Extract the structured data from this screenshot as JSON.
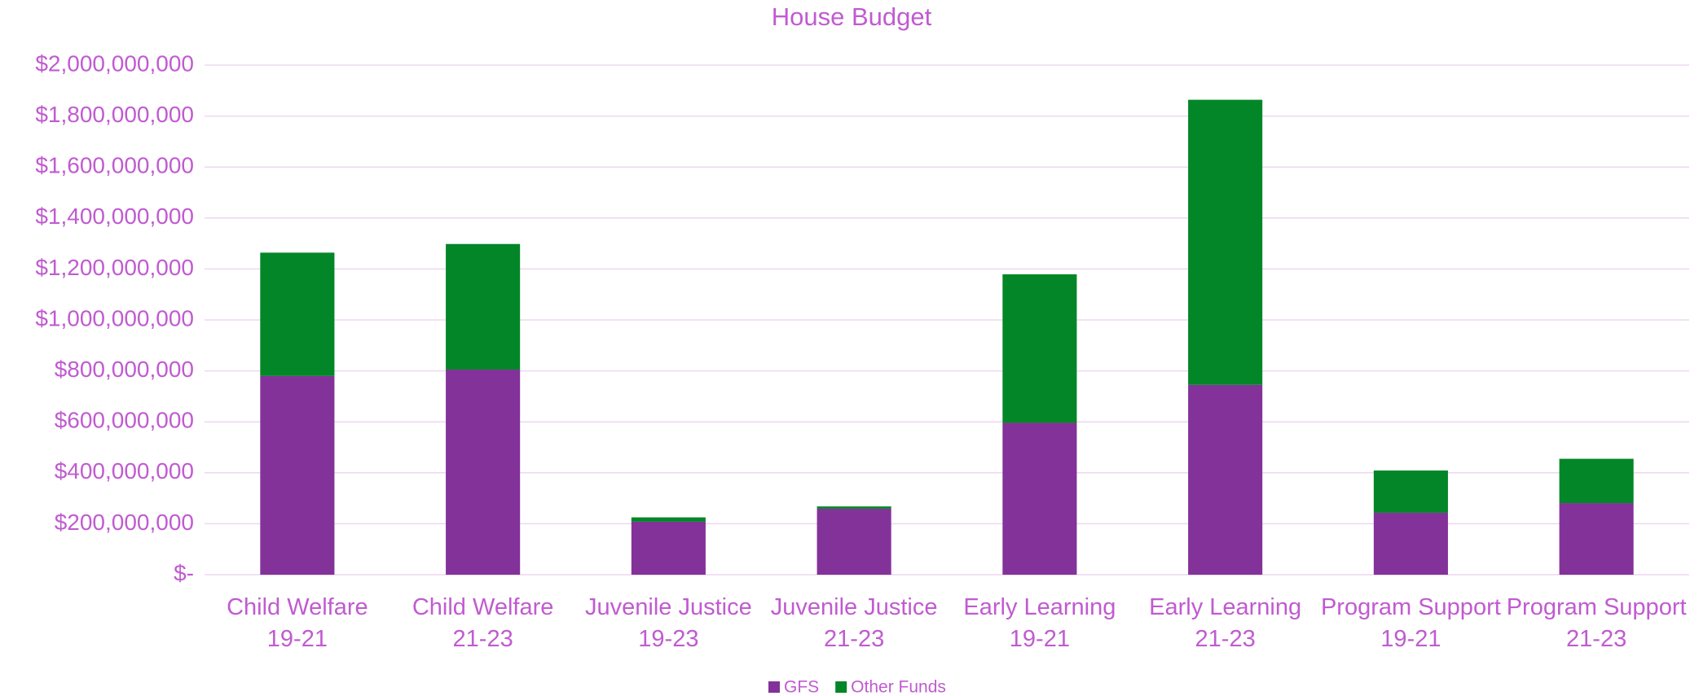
{
  "chart_data": {
    "type": "stacked_bar",
    "title": "House Budget",
    "categories": [
      "Child Welfare 19-21",
      "Child Welfare 21-23",
      "Juvenile Justice 19-23",
      "Juvenile Justice 21-23",
      "Early Learning 19-21",
      "Early Learning 21-23",
      "Program Support 19-21",
      "Program Support 21-23"
    ],
    "series": [
      {
        "name": "GFS",
        "color": "#83329a",
        "values": [
          780000000,
          805000000,
          208000000,
          259000000,
          596000000,
          745000000,
          243000000,
          281000000
        ]
      },
      {
        "name": "Other Funds",
        "color": "#038627",
        "values": [
          484000000,
          493000000,
          17000000,
          9000000,
          583000000,
          1119000000,
          166000000,
          174000000
        ]
      }
    ],
    "ylim": [
      0,
      2000000000
    ],
    "yticks": [
      {
        "value": 0,
        "label": "$-"
      },
      {
        "value": 200000000,
        "label": "$200,000,000"
      },
      {
        "value": 400000000,
        "label": "$400,000,000"
      },
      {
        "value": 600000000,
        "label": "$600,000,000"
      },
      {
        "value": 800000000,
        "label": "$800,000,000"
      },
      {
        "value": 1000000000,
        "label": "$1,000,000,000"
      },
      {
        "value": 1200000000,
        "label": "$1,200,000,000"
      },
      {
        "value": 1400000000,
        "label": "$1,400,000,000"
      },
      {
        "value": 1600000000,
        "label": "$1,600,000,000"
      },
      {
        "value": 1800000000,
        "label": "$1,800,000,000"
      },
      {
        "value": 2000000000,
        "label": "$2,000,000,000"
      }
    ],
    "grid": true,
    "legend": "bottom"
  }
}
